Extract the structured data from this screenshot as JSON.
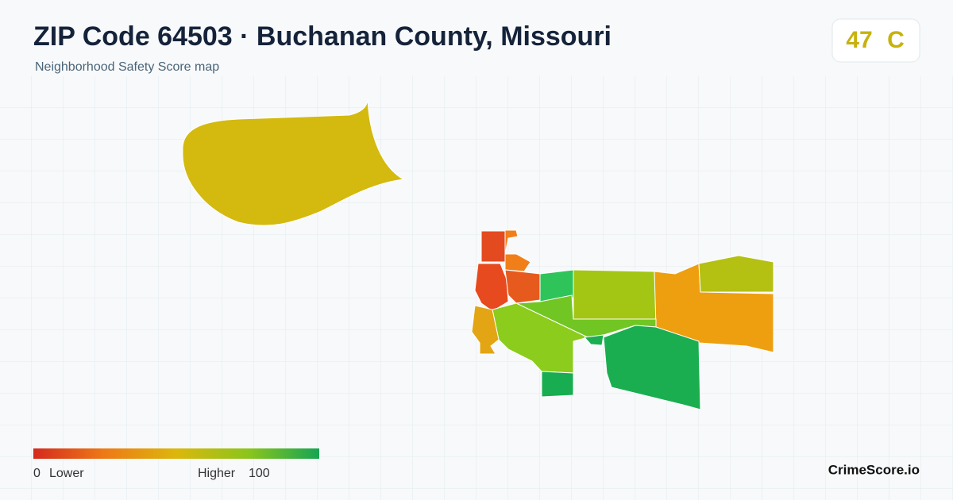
{
  "header": {
    "title": "ZIP Code 64503 · Buchanan County, Missouri",
    "subtitle": "Neighborhood Safety Score map"
  },
  "score": {
    "value": "47",
    "grade": "C"
  },
  "legend": {
    "min": "0",
    "min_label": "Lower",
    "max_label": "Higher",
    "max": "100"
  },
  "brand": "CrimeScore.io"
}
